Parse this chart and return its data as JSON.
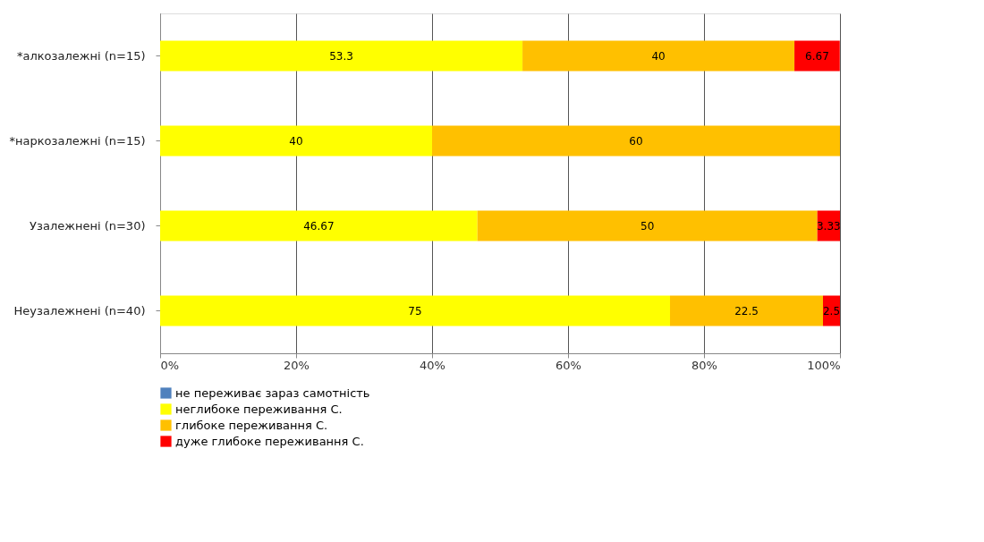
{
  "chart_data": {
    "type": "bar",
    "orientation": "horizontal",
    "stacked": true,
    "data_labels": true,
    "grid": "x",
    "legend": "bottom",
    "categories": [
      "*алкозалежні  (n=15)",
      "*наркозалежні (n=15)",
      "Узалежнені (n=30)",
      "Неузалежнені (n=40)"
    ],
    "series": [
      {
        "name": "не переживає зараз самотність",
        "color": "#4f81bd",
        "values": [
          null,
          null,
          null,
          null
        ]
      },
      {
        "name": "неглибоке переживання С.",
        "color": "#ffff00",
        "values": [
          53.3,
          40,
          46.67,
          75
        ]
      },
      {
        "name": "глибоке переживання С.",
        "color": "#ffc000",
        "values": [
          40,
          60,
          50,
          22.5
        ]
      },
      {
        "name": "дуже глибоке переживання С.",
        "color": "#ff0000",
        "values": [
          6.67,
          null,
          3.33,
          2.5
        ]
      }
    ],
    "xlim": [
      0,
      100
    ],
    "xticks": [
      {
        "value": 0,
        "label": "0%"
      },
      {
        "value": 20,
        "label": "20%"
      },
      {
        "value": 40,
        "label": "40%"
      },
      {
        "value": 60,
        "label": "60%"
      },
      {
        "value": 80,
        "label": "80%"
      },
      {
        "value": 100,
        "label": "100%"
      }
    ]
  }
}
